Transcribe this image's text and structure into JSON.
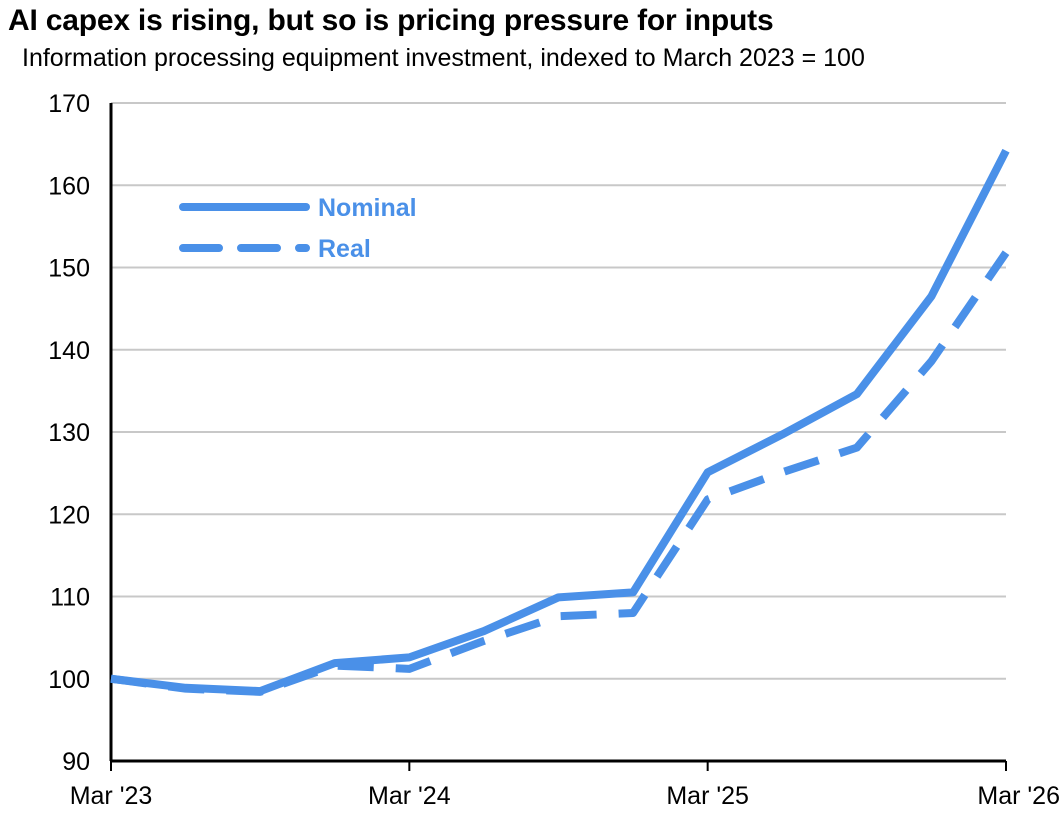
{
  "title": "AI capex is rising, but so is pricing pressure for inputs",
  "subtitle": "Information processing equipment investment, indexed to March 2023 = 100",
  "colors": {
    "series": "#4a90e8",
    "grid": "#c8c8c8",
    "axis": "#000000"
  },
  "chart_data": {
    "type": "line",
    "title": "AI capex is rising, but so is pricing pressure for inputs",
    "subtitle": "Information processing equipment investment, indexed to March 2023 = 100",
    "x": [
      "Mar '23",
      "Jun '23",
      "Sep '23",
      "Dec '23",
      "Mar '24",
      "Jun '24",
      "Sep '24",
      "Dec '24",
      "Mar '25",
      "Jun '25",
      "Sep '25",
      "Dec '25",
      "Mar '26"
    ],
    "x_ticks": [
      "Mar '23",
      "Mar '24",
      "Mar '25",
      "Mar '26"
    ],
    "ylim": [
      90,
      170
    ],
    "yticks": [
      90,
      100,
      110,
      120,
      130,
      140,
      150,
      160,
      170
    ],
    "grid": true,
    "legend_position": "top-left",
    "series": [
      {
        "name": "Nominal",
        "style": "solid",
        "values": [
          100,
          98.9,
          98.5,
          101.9,
          102.6,
          105.8,
          109.9,
          110.5,
          125.1,
          129.7,
          134.6,
          146.5,
          164.2
        ]
      },
      {
        "name": "Real",
        "style": "dashed",
        "values": [
          100,
          98.8,
          98.4,
          101.6,
          101.2,
          104.6,
          107.6,
          108.0,
          121.8,
          125.1,
          128.1,
          138.6,
          151.8
        ]
      }
    ]
  }
}
